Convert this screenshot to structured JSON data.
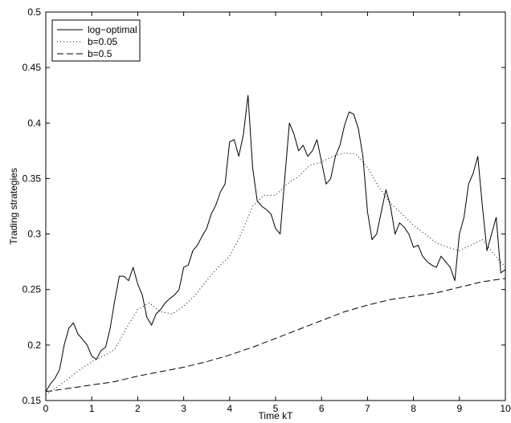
{
  "chart_data": {
    "type": "line",
    "xlabel": "Time kT",
    "ylabel": "Trading strategies",
    "xlim": [
      0,
      10
    ],
    "ylim": [
      0.15,
      0.5
    ],
    "xticks": [
      0,
      1,
      2,
      3,
      4,
      5,
      6,
      7,
      8,
      9,
      10
    ],
    "yticks": [
      0.15,
      0.2,
      0.25,
      0.3,
      0.35,
      0.4,
      0.45,
      0.5
    ],
    "ytick_labels": [
      "0.15",
      "0.2",
      "0.25",
      "0.3",
      "0.35",
      "0.4",
      "0.45",
      "0.5"
    ],
    "grid": false,
    "legend_position": "top-left",
    "series": [
      {
        "name": "log−optimal",
        "style": "solid",
        "color": "#000000",
        "x": [
          0,
          0.1,
          0.2,
          0.3,
          0.4,
          0.5,
          0.6,
          0.7,
          0.8,
          0.9,
          1.0,
          1.1,
          1.2,
          1.3,
          1.4,
          1.5,
          1.6,
          1.7,
          1.8,
          1.9,
          2.0,
          2.1,
          2.2,
          2.3,
          2.4,
          2.5,
          2.6,
          2.7,
          2.8,
          2.9,
          3.0,
          3.1,
          3.2,
          3.3,
          3.4,
          3.5,
          3.6,
          3.7,
          3.8,
          3.9,
          4.0,
          4.1,
          4.2,
          4.3,
          4.4,
          4.5,
          4.6,
          4.7,
          4.8,
          4.9,
          5.0,
          5.1,
          5.2,
          5.3,
          5.4,
          5.5,
          5.6,
          5.7,
          5.8,
          5.9,
          6.0,
          6.1,
          6.2,
          6.3,
          6.4,
          6.5,
          6.6,
          6.7,
          6.8,
          6.9,
          7.0,
          7.1,
          7.2,
          7.3,
          7.4,
          7.5,
          7.6,
          7.7,
          7.8,
          7.9,
          8.0,
          8.1,
          8.2,
          8.3,
          8.4,
          8.5,
          8.6,
          8.7,
          8.8,
          8.9,
          9.0,
          9.1,
          9.2,
          9.3,
          9.4,
          9.5,
          9.6,
          9.7,
          9.8,
          9.9,
          10.0
        ],
        "y": [
          0.158,
          0.165,
          0.17,
          0.178,
          0.2,
          0.215,
          0.22,
          0.21,
          0.205,
          0.2,
          0.19,
          0.187,
          0.195,
          0.198,
          0.215,
          0.24,
          0.262,
          0.262,
          0.258,
          0.27,
          0.255,
          0.245,
          0.225,
          0.218,
          0.228,
          0.232,
          0.238,
          0.242,
          0.245,
          0.25,
          0.27,
          0.272,
          0.285,
          0.29,
          0.298,
          0.305,
          0.318,
          0.326,
          0.338,
          0.345,
          0.383,
          0.385,
          0.37,
          0.39,
          0.425,
          0.36,
          0.33,
          0.325,
          0.322,
          0.318,
          0.305,
          0.3,
          0.35,
          0.4,
          0.39,
          0.375,
          0.38,
          0.37,
          0.375,
          0.385,
          0.365,
          0.345,
          0.35,
          0.37,
          0.38,
          0.398,
          0.41,
          0.408,
          0.395,
          0.37,
          0.32,
          0.295,
          0.3,
          0.32,
          0.34,
          0.325,
          0.3,
          0.31,
          0.306,
          0.3,
          0.288,
          0.29,
          0.28,
          0.275,
          0.272,
          0.27,
          0.28,
          0.275,
          0.27,
          0.258,
          0.3,
          0.315,
          0.345,
          0.355,
          0.37,
          0.325,
          0.285,
          0.3,
          0.315,
          0.265,
          0.268
        ]
      },
      {
        "name": "b=0.05",
        "style": "dotted",
        "color": "#000000",
        "x": [
          0,
          0.25,
          0.5,
          0.75,
          1.0,
          1.25,
          1.5,
          1.75,
          2.0,
          2.25,
          2.5,
          2.75,
          3.0,
          3.25,
          3.5,
          3.75,
          4.0,
          4.25,
          4.5,
          4.75,
          5.0,
          5.25,
          5.5,
          5.75,
          6.0,
          6.25,
          6.5,
          6.75,
          7.0,
          7.25,
          7.5,
          7.75,
          8.0,
          8.25,
          8.5,
          8.75,
          9.0,
          9.25,
          9.5,
          9.75,
          10.0
        ],
        "y": [
          0.155,
          0.162,
          0.17,
          0.178,
          0.185,
          0.19,
          0.196,
          0.215,
          0.232,
          0.238,
          0.23,
          0.228,
          0.235,
          0.245,
          0.258,
          0.27,
          0.28,
          0.3,
          0.325,
          0.335,
          0.335,
          0.345,
          0.352,
          0.362,
          0.365,
          0.37,
          0.373,
          0.372,
          0.36,
          0.342,
          0.328,
          0.318,
          0.308,
          0.3,
          0.292,
          0.288,
          0.285,
          0.29,
          0.295,
          0.282,
          0.27
        ]
      },
      {
        "name": "b=0.5",
        "style": "dashed",
        "color": "#000000",
        "x": [
          0,
          0.5,
          1.0,
          1.5,
          2.0,
          2.5,
          3.0,
          3.5,
          4.0,
          4.5,
          5.0,
          5.5,
          6.0,
          6.5,
          7.0,
          7.5,
          8.0,
          8.5,
          9.0,
          9.5,
          10.0
        ],
        "y": [
          0.158,
          0.161,
          0.164,
          0.167,
          0.172,
          0.176,
          0.18,
          0.185,
          0.191,
          0.198,
          0.206,
          0.214,
          0.222,
          0.23,
          0.236,
          0.241,
          0.244,
          0.247,
          0.252,
          0.257,
          0.26
        ]
      }
    ]
  }
}
